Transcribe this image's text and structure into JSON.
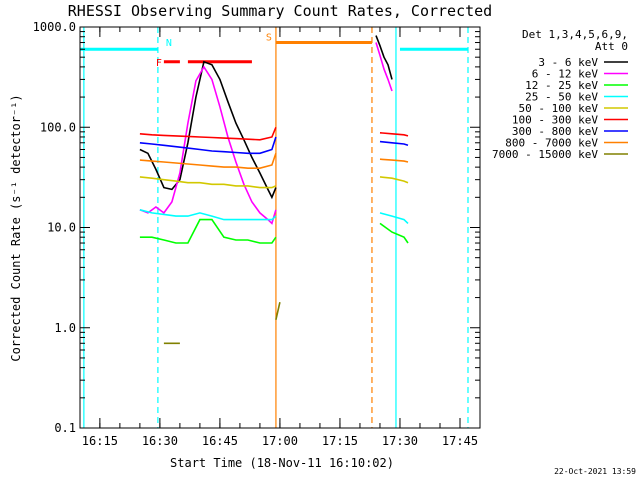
{
  "chart_data": {
    "type": "line",
    "title": "RHESSI Observing Summary Count Rates, Corrected",
    "xlabel": "Start Time (18-Nov-11 16:10:02)",
    "ylabel": "Corrected Count Rate (s⁻¹ detector⁻¹)",
    "y_scale": "log",
    "ylim": [
      0.1,
      1000
    ],
    "xlim": [
      "16:10:02",
      "17:50:00"
    ],
    "x_ticks": [
      "16:15",
      "16:30",
      "16:45",
      "17:00",
      "17:15",
      "17:30",
      "17:45"
    ],
    "y_ticks": [
      "0.1",
      "1.0",
      "10.0",
      "100.0",
      "1000.0"
    ],
    "legend_header": [
      "Det 1,3,4,5,6,9,",
      "Att 0"
    ],
    "legend_position": "right",
    "timestamp": "22-Oct-2021 13:59",
    "series": [
      {
        "name": "3 - 6 keV",
        "color": "#000000",
        "x": [
          "16:25",
          "16:27",
          "16:29",
          "16:31",
          "16:33",
          "16:35",
          "16:37",
          "16:39",
          "16:41",
          "16:43",
          "16:45",
          "16:47",
          "16:49",
          "16:51",
          "16:53",
          "16:55",
          "16:57",
          "16:58",
          "16:59"
        ],
        "values": [
          60,
          55,
          38,
          25,
          24,
          30,
          70,
          200,
          450,
          420,
          300,
          180,
          110,
          75,
          50,
          35,
          24,
          20,
          25
        ]
      },
      {
        "name": "3 - 6 keV",
        "color": "#000000",
        "x": [
          "17:24",
          "17:25",
          "17:26",
          "17:27",
          "17:28"
        ],
        "values": [
          820,
          650,
          500,
          420,
          300
        ]
      },
      {
        "name": "6 - 12 keV",
        "color": "#ff00ff",
        "x": [
          "16:25",
          "16:27",
          "16:29",
          "16:31",
          "16:33",
          "16:35",
          "16:37",
          "16:39",
          "16:41",
          "16:43",
          "16:45",
          "16:47",
          "16:49",
          "16:51",
          "16:53",
          "16:55",
          "16:57",
          "16:58",
          "16:59"
        ],
        "values": [
          15,
          14,
          16,
          14,
          18,
          35,
          110,
          290,
          400,
          300,
          160,
          80,
          45,
          27,
          18,
          14,
          12,
          11,
          15
        ]
      },
      {
        "name": "6 - 12 keV",
        "color": "#ff00ff",
        "x": [
          "17:24",
          "17:25",
          "17:26",
          "17:27",
          "17:28"
        ],
        "values": [
          700,
          520,
          380,
          300,
          230
        ]
      },
      {
        "name": "12 - 25 keV",
        "color": "#00ff00",
        "x": [
          "16:25",
          "16:28",
          "16:31",
          "16:34",
          "16:37",
          "16:40",
          "16:43",
          "16:46",
          "16:49",
          "16:52",
          "16:55",
          "16:58",
          "16:59"
        ],
        "values": [
          8,
          8,
          7.5,
          7,
          7,
          12,
          12,
          8,
          7.5,
          7.5,
          7,
          7,
          8
        ]
      },
      {
        "name": "12 - 25 keV",
        "color": "#00ff00",
        "x": [
          "17:25",
          "17:28",
          "17:31",
          "17:32"
        ],
        "values": [
          11,
          9,
          8,
          7
        ]
      },
      {
        "name": "25 - 50 keV",
        "color": "#00ffff",
        "x": [
          "16:25",
          "16:28",
          "16:31",
          "16:34",
          "16:37",
          "16:40",
          "16:43",
          "16:46",
          "16:49",
          "16:52",
          "16:55",
          "16:58",
          "16:59"
        ],
        "values": [
          15,
          14,
          13.5,
          13,
          13,
          14,
          13,
          12,
          12,
          12,
          12,
          12,
          13
        ]
      },
      {
        "name": "25 - 50 keV",
        "color": "#00ffff",
        "x": [
          "17:25",
          "17:28",
          "17:31",
          "17:32"
        ],
        "values": [
          14,
          13,
          12,
          11
        ]
      },
      {
        "name": "50 - 100 keV",
        "color": "#d2c800",
        "x": [
          "16:25",
          "16:28",
          "16:31",
          "16:34",
          "16:37",
          "16:40",
          "16:43",
          "16:46",
          "16:49",
          "16:52",
          "16:55",
          "16:58",
          "16:59"
        ],
        "values": [
          32,
          31,
          30,
          29,
          28,
          28,
          27,
          27,
          26,
          26,
          25,
          25,
          26
        ]
      },
      {
        "name": "50 - 100 keV",
        "color": "#d2c800",
        "x": [
          "17:25",
          "17:28",
          "17:31",
          "17:32"
        ],
        "values": [
          32,
          31,
          29,
          28
        ]
      },
      {
        "name": "100 - 300 keV",
        "color": "#ff0000",
        "x": [
          "16:25",
          "16:28",
          "16:31",
          "16:34",
          "16:37",
          "16:40",
          "16:43",
          "16:46",
          "16:49",
          "16:52",
          "16:55",
          "16:58",
          "16:59"
        ],
        "values": [
          86,
          84,
          83,
          82,
          81,
          80,
          79,
          78,
          77,
          76,
          75,
          80,
          100
        ]
      },
      {
        "name": "100 - 300 keV",
        "color": "#ff0000",
        "x": [
          "17:25",
          "17:28",
          "17:31",
          "17:32"
        ],
        "values": [
          88,
          86,
          84,
          82
        ]
      },
      {
        "name": "300 - 800 keV",
        "color": "#0000ff",
        "x": [
          "16:25",
          "16:28",
          "16:31",
          "16:34",
          "16:37",
          "16:40",
          "16:43",
          "16:46",
          "16:49",
          "16:52",
          "16:55",
          "16:58",
          "16:59"
        ],
        "values": [
          70,
          68,
          66,
          64,
          62,
          60,
          58,
          57,
          56,
          55,
          55,
          60,
          80
        ]
      },
      {
        "name": "300 - 800 keV",
        "color": "#0000ff",
        "x": [
          "17:25",
          "17:28",
          "17:31",
          "17:32"
        ],
        "values": [
          72,
          70,
          68,
          66
        ]
      },
      {
        "name": "800 - 7000 keV",
        "color": "#ff8000",
        "x": [
          "16:25",
          "16:28",
          "16:31",
          "16:34",
          "16:37",
          "16:40",
          "16:43",
          "16:46",
          "16:49",
          "16:52",
          "16:55",
          "16:58",
          "16:59"
        ],
        "values": [
          47,
          46,
          45,
          44,
          43,
          42,
          41,
          40,
          40,
          39,
          39,
          42,
          55
        ]
      },
      {
        "name": "800 - 7000 keV",
        "color": "#ff8000",
        "x": [
          "17:25",
          "17:28",
          "17:31",
          "17:32"
        ],
        "values": [
          48,
          47,
          46,
          45
        ]
      },
      {
        "name": "7000 - 15000 keV",
        "color": "#808000",
        "x": [
          "16:31",
          "16:35"
        ],
        "values": [
          0.7,
          0.7
        ]
      },
      {
        "name": "7000 - 15000 keV",
        "color": "#808000",
        "x": [
          "16:59",
          "17:00"
        ],
        "values": [
          1.2,
          1.8
        ]
      }
    ],
    "flags": {
      "night": {
        "label": "N",
        "color": "#00ffff",
        "level": 600,
        "segments": [
          [
            "16:10:02",
            "16:29:30"
          ],
          [
            "17:30:00",
            "17:47:00"
          ]
        ]
      },
      "flare": {
        "label": "F",
        "color": "#ff0000",
        "level": 450,
        "segments": [
          [
            "16:31",
            "16:35"
          ],
          [
            "16:37",
            "16:53"
          ]
        ]
      },
      "saa": {
        "label": "S",
        "color": "#ff8000",
        "level": 700,
        "segments": [
          [
            "16:59",
            "17:23"
          ]
        ]
      }
    },
    "boundaries": [
      {
        "time": "16:11",
        "color": "#00ffff",
        "style": "solid"
      },
      {
        "time": "16:29:30",
        "color": "#00ffff",
        "style": "dashed"
      },
      {
        "time": "16:59",
        "color": "#ff8000",
        "style": "solid"
      },
      {
        "time": "17:23",
        "color": "#ff8000",
        "style": "dashed"
      },
      {
        "time": "17:29",
        "color": "#00ffff",
        "style": "solid"
      },
      {
        "time": "17:47",
        "color": "#00ffff",
        "style": "dashed"
      }
    ]
  }
}
